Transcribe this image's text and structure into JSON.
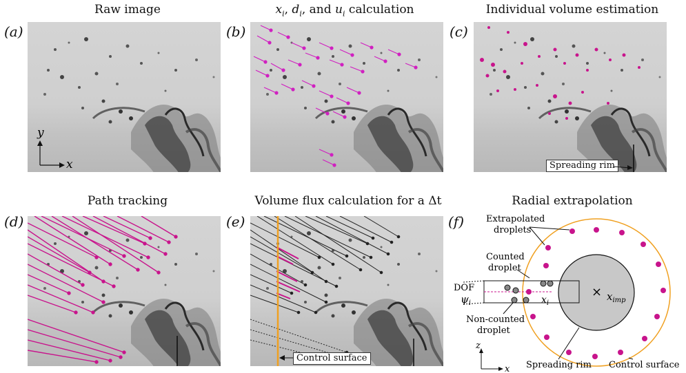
{
  "panels": {
    "a": {
      "label": "(a)",
      "title": "Raw image",
      "axis_y": "y",
      "axis_x": "x"
    },
    "b": {
      "label": "(b)",
      "title_parts": [
        "x",
        "i",
        ", ",
        "d",
        "i",
        ", and ",
        "u",
        "i",
        " calculation"
      ]
    },
    "c": {
      "label": "(c)",
      "title": "Individual volume estimation",
      "annotation": "Spreading rim"
    },
    "d": {
      "label": "(d)",
      "title": "Path tracking"
    },
    "e": {
      "label": "(e)",
      "title": "Volume flux calculation for a Δt",
      "annotation": "Control surface"
    },
    "f": {
      "label": "(f)",
      "title": "Radial extrapolation",
      "extrapolated_1": "Extrapolated",
      "extrapolated_2": "droplets",
      "counted_1": "Counted",
      "counted_2": "droplet",
      "dof": "DOF",
      "psi": "ψ",
      "psi_sub": "i",
      "xi": "x",
      "xi_sub": "i",
      "ximp": "x",
      "ximp_sub": "imp",
      "times": "×",
      "noncounted_1": "Non-counted",
      "noncounted_2": "droplet",
      "spreading_rim": "Spreading rim",
      "control_surface": "Control surface",
      "axis_z": "z",
      "axis_x": "x"
    }
  },
  "colors": {
    "magenta": "#c8148c",
    "orange": "#f0a020",
    "rim_fill": "#c8c8c8"
  }
}
